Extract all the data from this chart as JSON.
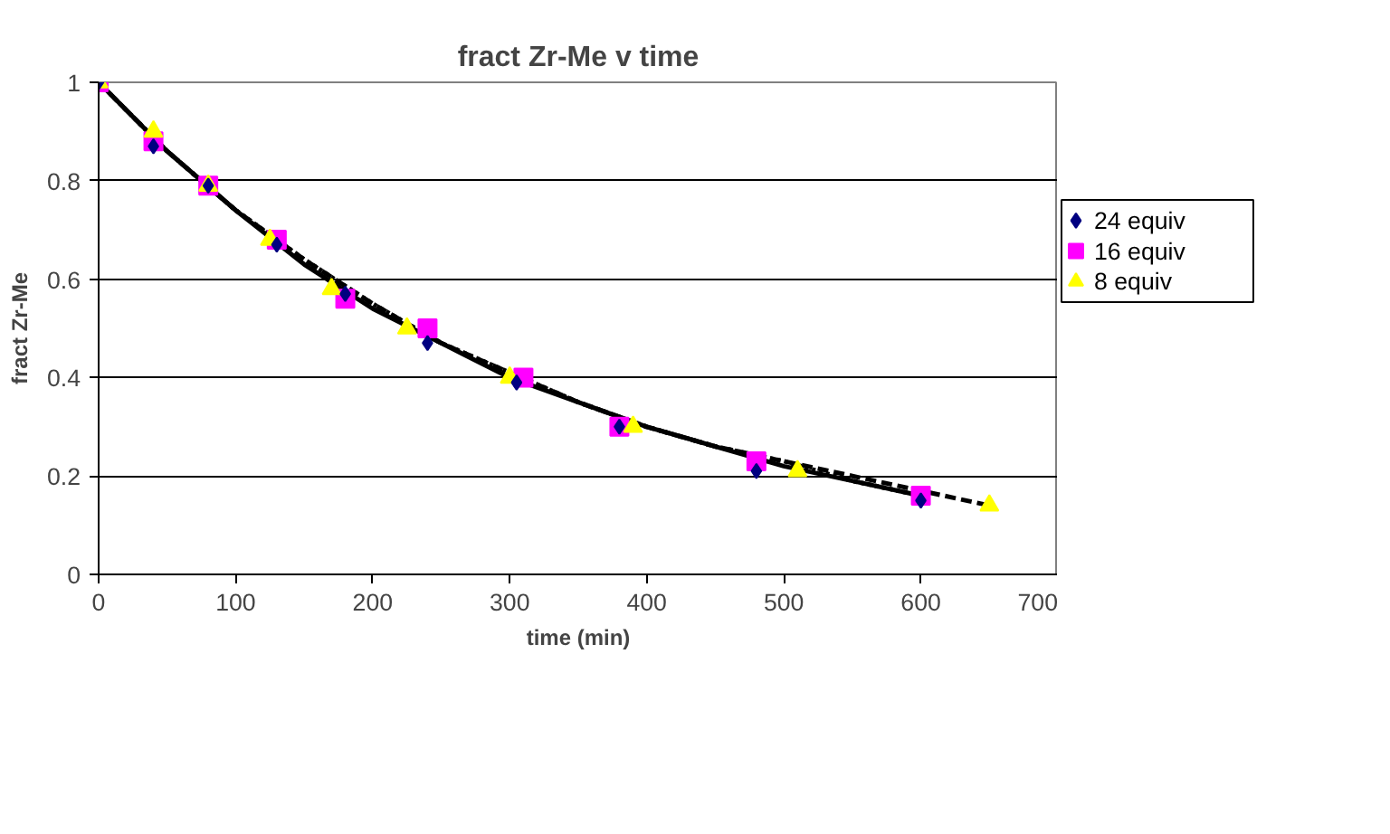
{
  "chart_data": {
    "type": "scatter",
    "title": "fract Zr-Me v time",
    "xlabel": "time (min)",
    "ylabel": "fract Zr-Me",
    "xlim": [
      0,
      700
    ],
    "xticks": [
      0,
      100,
      200,
      300,
      400,
      500,
      600,
      700
    ],
    "ylim": [
      0,
      1
    ],
    "yticks": [
      0,
      {
        "value": 0.2,
        "label": "0.2"
      },
      {
        "value": 0.4,
        "label": "0.4"
      },
      {
        "value": 0.6,
        "label": "0.6"
      },
      {
        "value": 0.8,
        "label": "0.8"
      },
      1
    ],
    "grid": "y",
    "legend": "right",
    "series": [
      {
        "name": "24 equiv",
        "color": "#000080",
        "marker": "diamond",
        "x": [
          0,
          40,
          80,
          130,
          180,
          240,
          305,
          380,
          480,
          600
        ],
        "values": [
          1,
          0.87,
          0.79,
          0.67,
          0.57,
          0.47,
          0.39,
          0.3,
          0.21,
          0.15
        ]
      },
      {
        "name": "16 equiv",
        "color": "#ff00ff",
        "marker": "square",
        "x": [
          0,
          40,
          80,
          130,
          180,
          240,
          310,
          380,
          480,
          600
        ],
        "values": [
          1,
          0.88,
          0.79,
          0.68,
          0.56,
          0.5,
          0.4,
          0.3,
          0.23,
          0.16
        ]
      },
      {
        "name": "8 equiv",
        "color": "#ffff00",
        "marker": "triangle",
        "x": [
          0,
          40,
          80,
          125,
          170,
          225,
          300,
          390,
          510,
          650
        ],
        "values": [
          1,
          0.9,
          0.79,
          0.68,
          0.58,
          0.5,
          0.4,
          0.3,
          0.21,
          0.14
        ]
      },
      {
        "type": "line",
        "color": "#000000",
        "line_style": "solid",
        "marker": "none",
        "x": [
          0,
          50,
          100,
          150,
          200,
          250,
          300,
          350,
          400,
          450,
          500,
          550,
          600
        ],
        "values": [
          1,
          0.86,
          0.74,
          0.63,
          0.54,
          0.47,
          0.4,
          0.35,
          0.3,
          0.26,
          0.22,
          0.19,
          0.16
        ]
      },
      {
        "type": "line",
        "color": "#000000",
        "line_style": "dotted",
        "marker": "none",
        "x": [
          0,
          50,
          100,
          150,
          200,
          250,
          300,
          350,
          400,
          450,
          500,
          550,
          600
        ],
        "values": [
          1,
          0.86,
          0.74,
          0.64,
          0.55,
          0.47,
          0.41,
          0.35,
          0.3,
          0.26,
          0.23,
          0.19,
          0.16
        ]
      },
      {
        "type": "line",
        "color": "#000000",
        "line_style": "dashed",
        "marker": "none",
        "x": [
          0,
          50,
          100,
          150,
          200,
          250,
          300,
          350,
          400,
          450,
          500,
          550,
          600,
          650
        ],
        "values": [
          1,
          0.86,
          0.74,
          0.64,
          0.55,
          0.47,
          0.41,
          0.35,
          0.3,
          0.26,
          0.23,
          0.2,
          0.17,
          0.14
        ]
      }
    ]
  }
}
